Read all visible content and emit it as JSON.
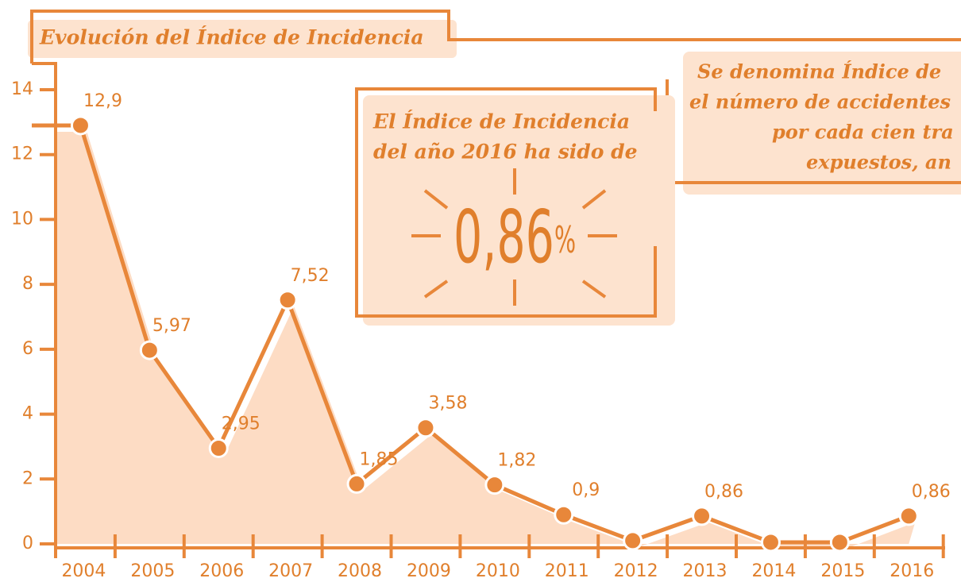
{
  "chart_data": {
    "type": "line",
    "title": "Evolución del Índice de Incidencia",
    "categories": [
      "2004",
      "2005",
      "2006",
      "2007",
      "2008",
      "2009",
      "2010",
      "2011",
      "2012",
      "2013",
      "2014",
      "2015",
      "2016"
    ],
    "values": [
      12.9,
      5.97,
      2.95,
      7.52,
      1.85,
      3.58,
      1.82,
      0.9,
      0.1,
      0.86,
      0.05,
      0.05,
      0.86
    ],
    "value_labels": [
      "12,9",
      "5,97",
      "2,95",
      "7,52",
      "1,85",
      "3,58",
      "1,82",
      "0,9",
      null,
      "0,86",
      null,
      null,
      "0,86"
    ],
    "color": "#e8873a",
    "area_color": "#fddcc4",
    "ylim": [
      0,
      14
    ],
    "yticks": [
      0,
      2,
      4,
      6,
      8,
      10,
      12,
      14
    ],
    "highlight": {
      "lines": [
        "El Índice de Incidencia",
        "del año 2016 ha sido de"
      ],
      "value": "0,86",
      "unit": "%"
    },
    "note": [
      "Se denomina Índice de",
      "el número de accidentes",
      "por cada cien tra",
      "expuestos, an"
    ]
  }
}
